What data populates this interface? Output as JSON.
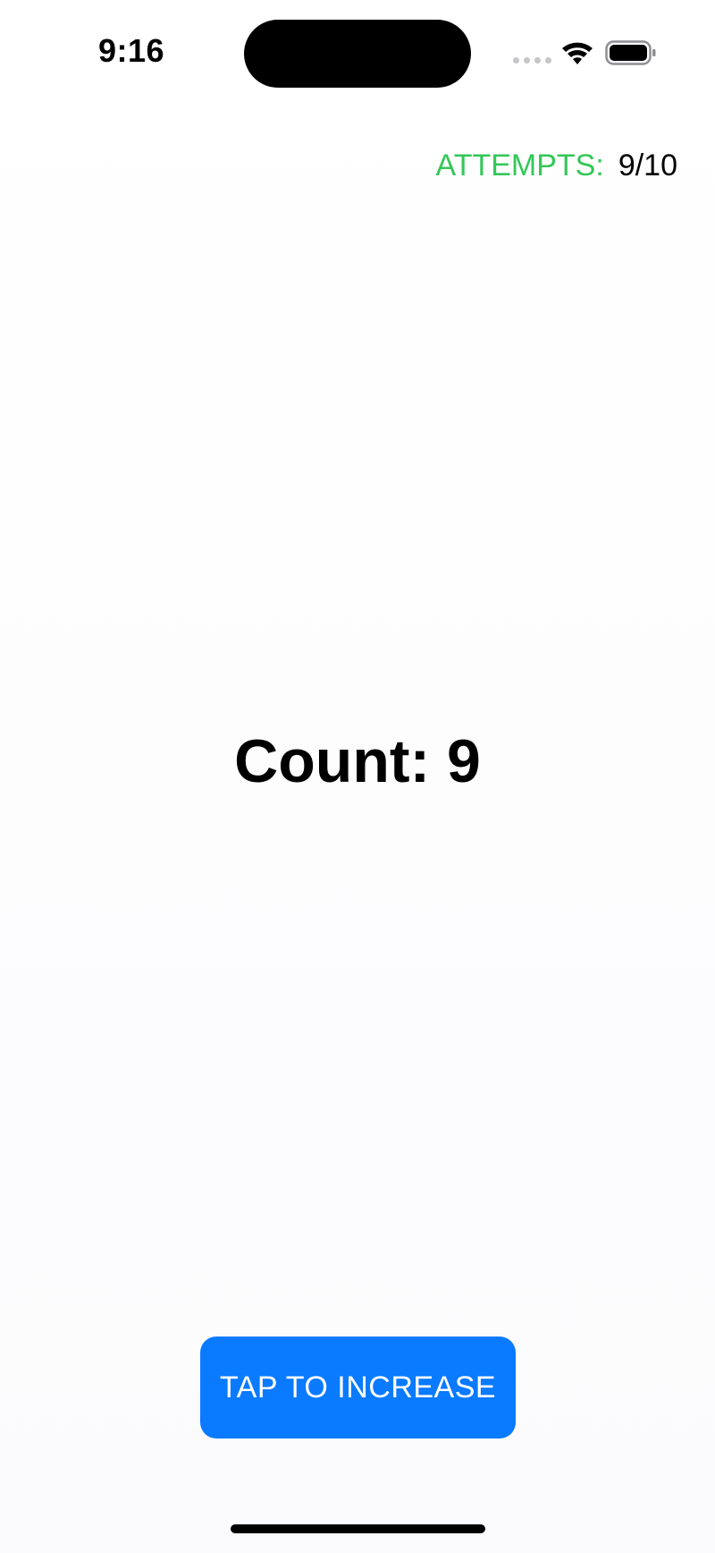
{
  "status_bar": {
    "time": "9:16",
    "icons": [
      "cellular-signal-icon",
      "wifi-icon",
      "battery-icon"
    ]
  },
  "attempts": {
    "label": "ATTEMPTS:",
    "value": "9/10",
    "label_color": "#34c759"
  },
  "counter": {
    "text": "Count: 9"
  },
  "button": {
    "label": "TAP TO INCREASE",
    "color": "#0a7aff"
  }
}
